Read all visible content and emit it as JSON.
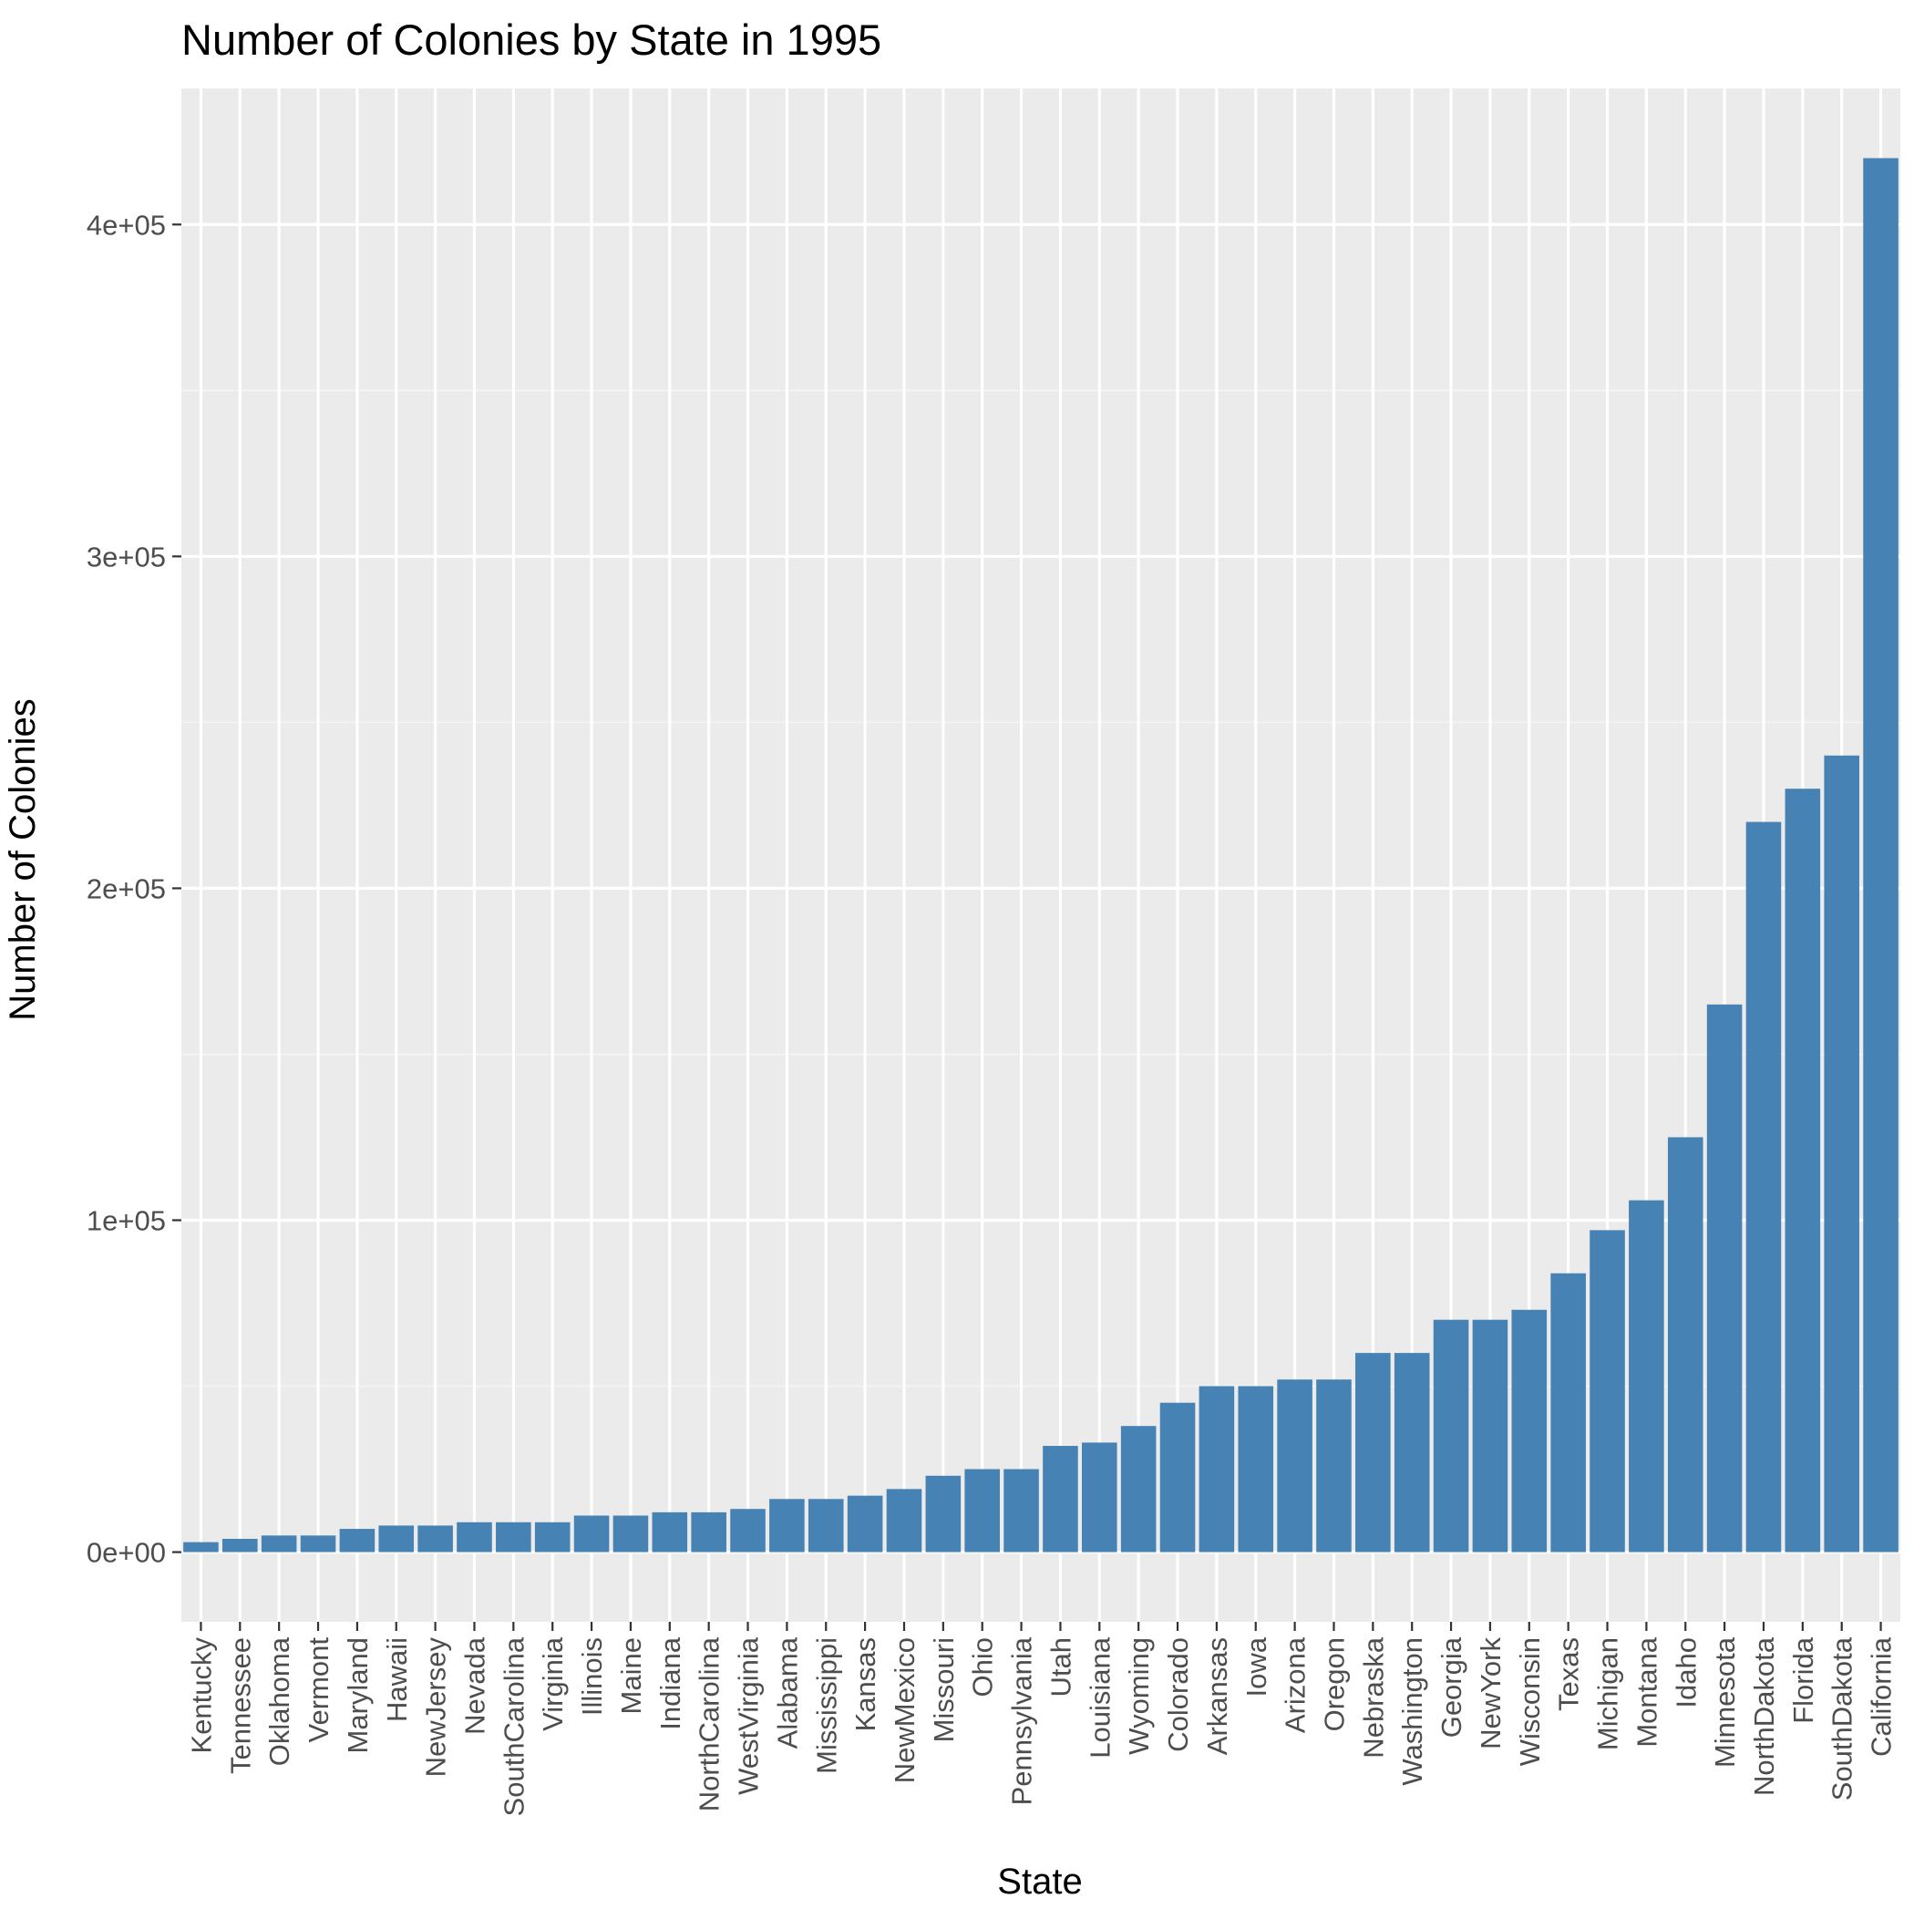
{
  "chart_data": {
    "type": "bar",
    "title": "Number of Colonies by State in 1995",
    "xlabel": "State",
    "ylabel": "Number of Colonies",
    "categories": [
      "Kentucky",
      "Tennessee",
      "Oklahoma",
      "Vermont",
      "Maryland",
      "Hawaii",
      "NewJersey",
      "Nevada",
      "SouthCarolina",
      "Virginia",
      "Illinois",
      "Maine",
      "Indiana",
      "NorthCarolina",
      "WestVirginia",
      "Alabama",
      "Mississippi",
      "Kansas",
      "NewMexico",
      "Missouri",
      "Ohio",
      "Pennsylvania",
      "Utah",
      "Louisiana",
      "Wyoming",
      "Colorado",
      "Arkansas",
      "Iowa",
      "Arizona",
      "Oregon",
      "Nebraska",
      "Washington",
      "Georgia",
      "NewYork",
      "Wisconsin",
      "Texas",
      "Michigan",
      "Montana",
      "Idaho",
      "Minnesota",
      "NorthDakota",
      "Florida",
      "SouthDakota",
      "California"
    ],
    "values": [
      3000,
      4000,
      5000,
      5000,
      7000,
      8000,
      8000,
      9000,
      9000,
      9000,
      11000,
      11000,
      12000,
      12000,
      13000,
      16000,
      16000,
      17000,
      19000,
      23000,
      25000,
      25000,
      32000,
      33000,
      38000,
      45000,
      50000,
      50000,
      52000,
      52000,
      60000,
      60000,
      70000,
      70000,
      73000,
      84000,
      97000,
      106000,
      125000,
      165000,
      220000,
      230000,
      240000,
      420000
    ],
    "ylim": [
      -21000,
      441000
    ],
    "y_ticks": [
      0,
      100000,
      200000,
      300000,
      400000
    ],
    "y_tick_labels": [
      "0e+00",
      "1e+05",
      "2e+05",
      "3e+05",
      "4e+05"
    ],
    "grid": true,
    "colors": {
      "bar": "#4682B4",
      "panel": "#EBEBEB",
      "grid_major": "#FFFFFF",
      "grid_minor": "#F5F5F5",
      "tick_text": "#4D4D4D",
      "tick_mark": "#333333"
    }
  }
}
